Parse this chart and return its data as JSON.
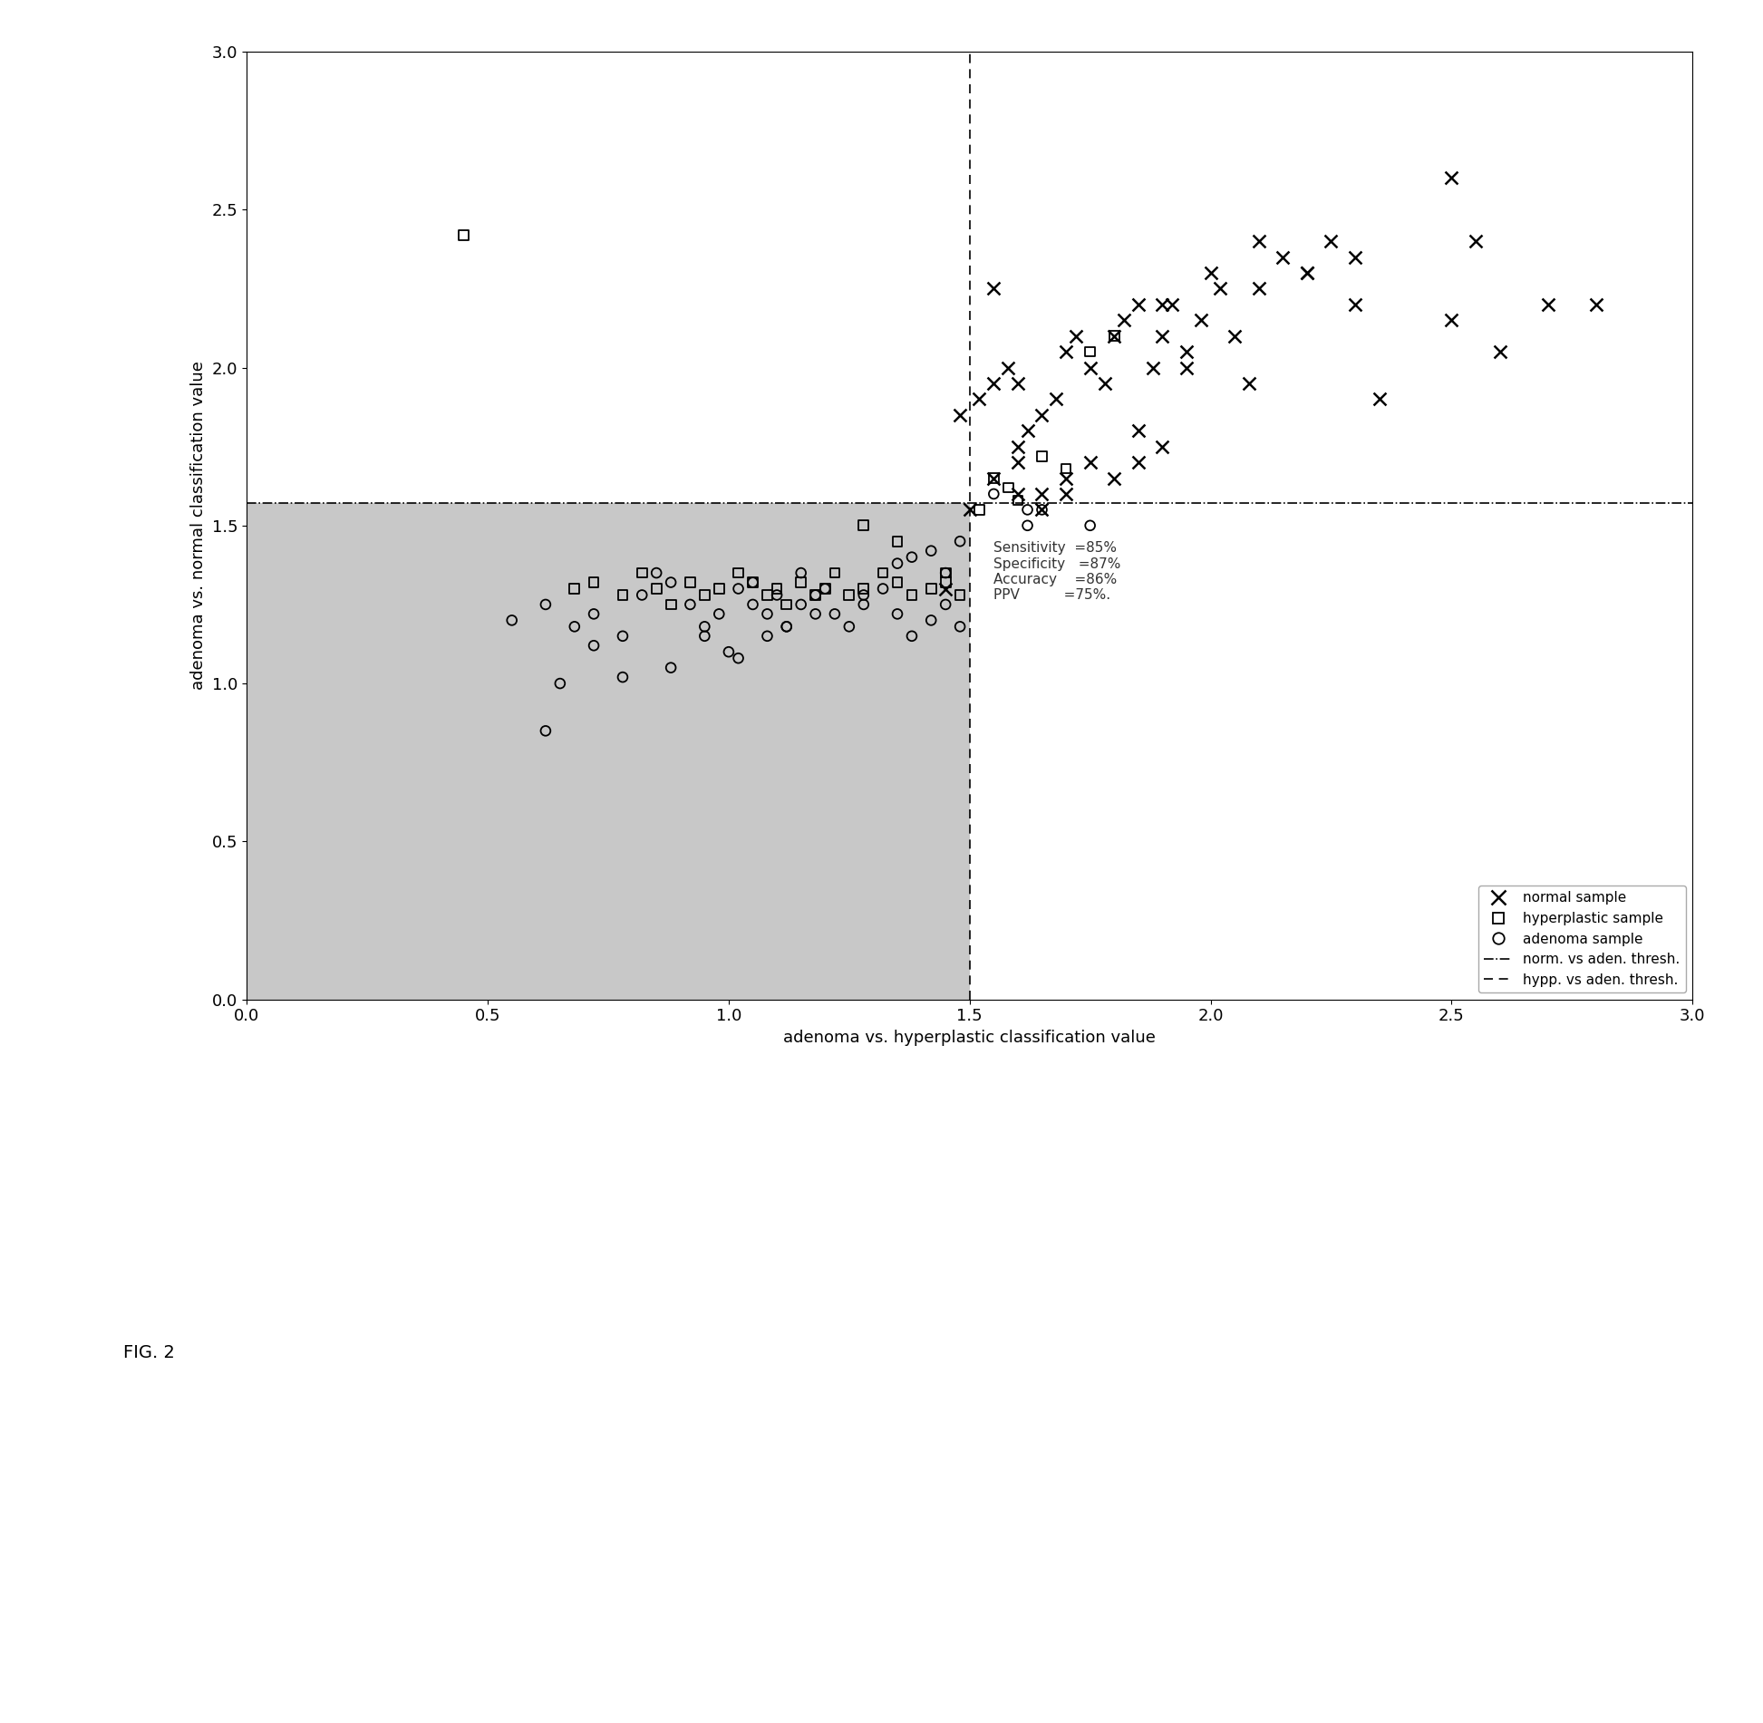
{
  "xlim": [
    0,
    3
  ],
  "ylim": [
    0,
    3
  ],
  "xticks": [
    0,
    0.5,
    1,
    1.5,
    2,
    2.5,
    3
  ],
  "yticks": [
    0,
    0.5,
    1,
    1.5,
    2,
    2.5,
    3
  ],
  "xlabel": "adenoma vs. hyperplastic classification value",
  "ylabel": "adenoma vs. normal classification value",
  "x_thresh": 1.5,
  "y_thresh": 1.57,
  "fig2_label": "FIG. 2",
  "background_color": "#c8c8c8",
  "normal_x": [
    1.48,
    1.52,
    1.55,
    1.58,
    1.6,
    1.62,
    1.65,
    1.68,
    1.7,
    1.72,
    1.75,
    1.78,
    1.8,
    1.82,
    1.85,
    1.88,
    1.9,
    1.92,
    1.95,
    1.98,
    2.0,
    2.02,
    2.05,
    2.08,
    2.1,
    2.15,
    2.2,
    2.25,
    2.3,
    2.5,
    2.55,
    2.7,
    2.8,
    1.55,
    1.6,
    1.65,
    1.7,
    1.75,
    1.8,
    1.85,
    1.45,
    1.5,
    1.6,
    1.65,
    1.7,
    2.1,
    2.2,
    1.9,
    1.95,
    2.3,
    2.35,
    2.5,
    2.6,
    1.85,
    1.9,
    1.55,
    1.6
  ],
  "normal_y": [
    1.85,
    1.9,
    1.95,
    2.0,
    1.75,
    1.8,
    1.85,
    1.9,
    2.05,
    2.1,
    2.0,
    1.95,
    2.1,
    2.15,
    2.2,
    2.0,
    2.1,
    2.2,
    2.05,
    2.15,
    2.3,
    2.25,
    2.1,
    1.95,
    2.4,
    2.35,
    2.3,
    2.4,
    2.2,
    2.6,
    2.4,
    2.2,
    2.2,
    1.65,
    1.7,
    1.6,
    1.65,
    1.7,
    1.65,
    1.7,
    1.3,
    1.55,
    1.6,
    1.55,
    1.6,
    2.25,
    2.3,
    2.2,
    2.0,
    2.35,
    1.9,
    2.15,
    2.05,
    1.8,
    1.75,
    2.25,
    1.95
  ],
  "hyperplastic_x": [
    0.68,
    0.72,
    0.78,
    0.82,
    0.85,
    0.88,
    0.92,
    0.95,
    0.98,
    1.02,
    1.05,
    1.08,
    1.1,
    1.12,
    1.15,
    1.18,
    1.2,
    1.22,
    1.25,
    1.28,
    1.32,
    1.35,
    1.38,
    1.42,
    1.45,
    1.48,
    0.45,
    1.28,
    1.35,
    1.52,
    1.55,
    1.58,
    1.6,
    1.65,
    1.7,
    1.75,
    1.8,
    1.45
  ],
  "hyperplastic_y": [
    1.3,
    1.32,
    1.28,
    1.35,
    1.3,
    1.25,
    1.32,
    1.28,
    1.3,
    1.35,
    1.32,
    1.28,
    1.3,
    1.25,
    1.32,
    1.28,
    1.3,
    1.35,
    1.28,
    1.3,
    1.35,
    1.32,
    1.28,
    1.3,
    1.32,
    1.28,
    2.42,
    1.5,
    1.45,
    1.55,
    1.65,
    1.62,
    1.58,
    1.72,
    1.68,
    2.05,
    2.1,
    1.35
  ],
  "adenoma_x": [
    0.55,
    0.62,
    0.68,
    0.72,
    0.78,
    0.82,
    0.88,
    0.92,
    0.95,
    0.98,
    1.02,
    1.05,
    1.08,
    1.12,
    1.15,
    1.18,
    1.22,
    1.25,
    1.28,
    1.32,
    1.35,
    1.38,
    1.42,
    1.45,
    1.48,
    0.85,
    1.05,
    1.1,
    1.15,
    1.2,
    1.62,
    1.65,
    1.55,
    1.42,
    1.48,
    0.72,
    0.65,
    1.35,
    1.38,
    1.02,
    1.12,
    1.08,
    1.18,
    0.88,
    0.78,
    1.28,
    1.45,
    0.95,
    1.0,
    0.62,
    1.62,
    1.75
  ],
  "adenoma_y": [
    1.2,
    1.25,
    1.18,
    1.22,
    1.15,
    1.28,
    1.32,
    1.25,
    1.18,
    1.22,
    1.3,
    1.25,
    1.22,
    1.18,
    1.25,
    1.28,
    1.22,
    1.18,
    1.25,
    1.3,
    1.22,
    1.15,
    1.2,
    1.25,
    1.18,
    1.35,
    1.32,
    1.28,
    1.35,
    1.3,
    1.5,
    1.55,
    1.6,
    1.42,
    1.45,
    1.12,
    1.0,
    1.38,
    1.4,
    1.08,
    1.18,
    1.15,
    1.22,
    1.05,
    1.02,
    1.28,
    1.35,
    1.15,
    1.1,
    0.85,
    1.55,
    1.5
  ],
  "stats_lines": [
    "Sensitivity  =85%",
    "Specificity   =87%",
    "Accuracy    =86%",
    "PPV          =75%."
  ],
  "legend_items": [
    "normal sample",
    "hyperplastic sample",
    "adenoma sample",
    "norm. vs aden. thresh.",
    "hypp. vs aden. thresh."
  ]
}
